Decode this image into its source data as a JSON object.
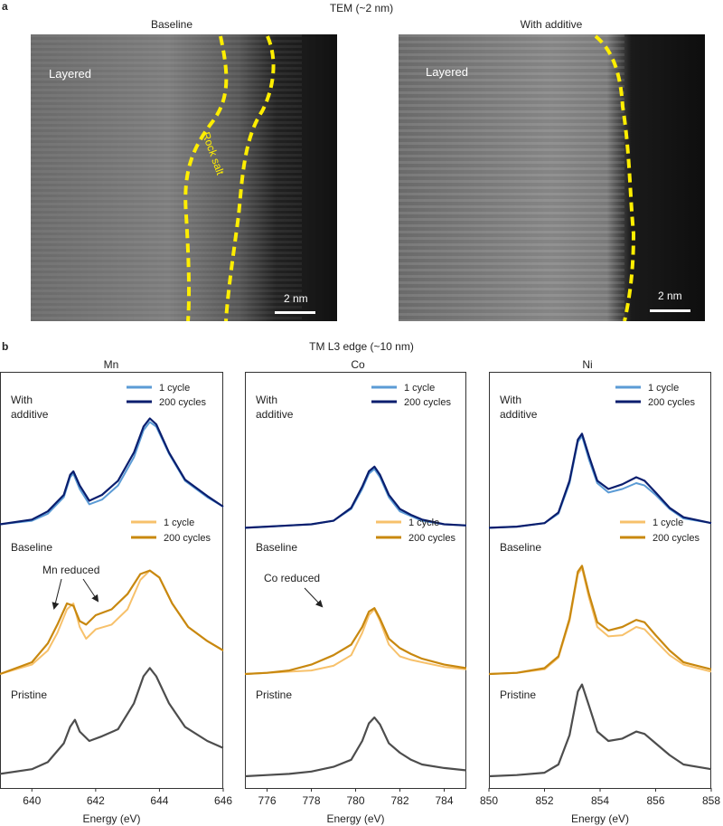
{
  "panel_a": {
    "letter": "a",
    "title": "TEM (~2 nm)",
    "images": [
      {
        "title": "Baseline",
        "region_label": "Layered",
        "interface_label": "Rock salt",
        "scale_label": "2 nm"
      },
      {
        "title": "With additive",
        "region_label": "Layered",
        "scale_label": "2 nm"
      }
    ],
    "colors": {
      "interface_line": "#ffee00",
      "scale_bar": "#ffffff"
    }
  },
  "panel_b": {
    "letter": "b",
    "title": "TM L3 edge (~10 nm)",
    "xlabel": "Energy (eV)",
    "group_labels": {
      "with_additive": "With\nadditive",
      "baseline": "Baseline",
      "pristine": "Pristine"
    },
    "legend": {
      "one_cycle": "1 cycle",
      "two_hundred_cycles": "200 cycles"
    },
    "colors": {
      "additive_1": "#5b9bd5",
      "additive_200": "#0a1e6e",
      "baseline_1": "#f7c16b",
      "baseline_200": "#c8880f",
      "pristine": "#4d4d4d"
    }
  },
  "chart_data": [
    {
      "type": "line",
      "element": "Mn",
      "title": "Mn",
      "xlabel": "Energy (eV)",
      "xlim": [
        639,
        646
      ],
      "xticks": [
        640,
        642,
        644,
        646
      ],
      "annotation": "Mn reduced",
      "series": [
        {
          "name": "1 cycle",
          "group": "With additive",
          "x": [
            639,
            640,
            640.5,
            641,
            641.2,
            641.3,
            641.5,
            641.8,
            642.2,
            642.7,
            643.2,
            643.5,
            643.7,
            643.9,
            644.3,
            644.8,
            645.5,
            646
          ],
          "y": [
            0.05,
            0.08,
            0.14,
            0.28,
            0.45,
            0.48,
            0.35,
            0.22,
            0.26,
            0.38,
            0.62,
            0.85,
            0.92,
            0.88,
            0.65,
            0.42,
            0.28,
            0.2
          ]
        },
        {
          "name": "200 cycles",
          "group": "With additive",
          "x": [
            639,
            640,
            640.5,
            641,
            641.2,
            641.3,
            641.5,
            641.8,
            642.2,
            642.7,
            643.2,
            643.5,
            643.7,
            643.9,
            644.3,
            644.8,
            645.5,
            646
          ],
          "y": [
            0.05,
            0.09,
            0.16,
            0.3,
            0.47,
            0.5,
            0.38,
            0.25,
            0.3,
            0.42,
            0.66,
            0.88,
            0.95,
            0.9,
            0.66,
            0.43,
            0.29,
            0.2
          ]
        },
        {
          "name": "1 cycle",
          "group": "Baseline",
          "x": [
            639,
            640,
            640.5,
            640.8,
            641.1,
            641.3,
            641.5,
            641.7,
            642,
            642.5,
            643,
            643.4,
            643.7,
            644,
            644.4,
            644.9,
            645.5,
            646
          ],
          "y": [
            0.0,
            0.08,
            0.2,
            0.35,
            0.55,
            0.6,
            0.4,
            0.3,
            0.38,
            0.42,
            0.55,
            0.8,
            0.88,
            0.82,
            0.6,
            0.4,
            0.28,
            0.2
          ]
        },
        {
          "name": "200 cycles",
          "group": "Baseline",
          "x": [
            639,
            640,
            640.5,
            640.8,
            641.1,
            641.3,
            641.5,
            641.7,
            642,
            642.5,
            643,
            643.4,
            643.7,
            644,
            644.4,
            644.9,
            645.5,
            646
          ],
          "y": [
            0.0,
            0.1,
            0.26,
            0.42,
            0.6,
            0.58,
            0.45,
            0.42,
            0.5,
            0.55,
            0.68,
            0.85,
            0.88,
            0.82,
            0.6,
            0.4,
            0.28,
            0.2
          ]
        },
        {
          "name": "Pristine",
          "group": "Pristine",
          "x": [
            639,
            640,
            640.5,
            641,
            641.2,
            641.35,
            641.5,
            641.8,
            642.2,
            642.7,
            643.2,
            643.5,
            643.7,
            643.9,
            644.3,
            644.8,
            645.5,
            646
          ],
          "y": [
            0.02,
            0.06,
            0.12,
            0.28,
            0.42,
            0.48,
            0.38,
            0.3,
            0.34,
            0.4,
            0.62,
            0.85,
            0.92,
            0.85,
            0.62,
            0.42,
            0.3,
            0.24
          ]
        }
      ]
    },
    {
      "type": "line",
      "element": "Co",
      "title": "Co",
      "xlabel": "Energy (eV)",
      "xlim": [
        775,
        785
      ],
      "xticks": [
        776,
        778,
        780,
        782,
        784
      ],
      "annotation": "Co reduced",
      "series": [
        {
          "name": "1 cycle",
          "group": "With additive",
          "x": [
            775,
            776,
            777,
            778,
            779,
            779.8,
            780.3,
            780.6,
            780.85,
            781.1,
            781.5,
            782,
            782.5,
            783,
            784,
            785
          ],
          "y": [
            0.02,
            0.03,
            0.04,
            0.05,
            0.08,
            0.18,
            0.35,
            0.48,
            0.52,
            0.45,
            0.28,
            0.16,
            0.12,
            0.08,
            0.05,
            0.04
          ]
        },
        {
          "name": "200 cycles",
          "group": "With additive",
          "x": [
            775,
            776,
            777,
            778,
            779,
            779.8,
            780.3,
            780.6,
            780.85,
            781.1,
            781.5,
            782,
            782.5,
            783,
            784,
            785
          ],
          "y": [
            0.02,
            0.03,
            0.04,
            0.05,
            0.08,
            0.19,
            0.37,
            0.5,
            0.54,
            0.47,
            0.3,
            0.18,
            0.13,
            0.09,
            0.05,
            0.04
          ]
        },
        {
          "name": "1 cycle",
          "group": "Baseline",
          "x": [
            775,
            776,
            777,
            778,
            779,
            779.8,
            780.3,
            780.6,
            780.85,
            781.1,
            781.5,
            782,
            782.5,
            783,
            784,
            785
          ],
          "y": [
            0.0,
            0.01,
            0.02,
            0.03,
            0.07,
            0.16,
            0.35,
            0.5,
            0.55,
            0.45,
            0.25,
            0.15,
            0.12,
            0.1,
            0.06,
            0.04
          ]
        },
        {
          "name": "200 cycles",
          "group": "Baseline",
          "x": [
            775,
            776,
            777,
            778,
            779,
            779.8,
            780.3,
            780.6,
            780.85,
            781.1,
            781.5,
            782,
            782.5,
            783,
            784,
            785
          ],
          "y": [
            0.0,
            0.01,
            0.03,
            0.08,
            0.16,
            0.25,
            0.4,
            0.53,
            0.56,
            0.47,
            0.3,
            0.22,
            0.17,
            0.13,
            0.08,
            0.05
          ]
        },
        {
          "name": "Pristine",
          "group": "Pristine",
          "x": [
            775,
            776,
            777,
            778,
            779,
            779.8,
            780.3,
            780.6,
            780.85,
            781.1,
            781.5,
            782,
            782.5,
            783,
            784,
            785
          ],
          "y": [
            0.0,
            0.01,
            0.02,
            0.04,
            0.08,
            0.14,
            0.3,
            0.45,
            0.5,
            0.44,
            0.28,
            0.2,
            0.14,
            0.1,
            0.07,
            0.05
          ]
        }
      ]
    },
    {
      "type": "line",
      "element": "Ni",
      "title": "Ni",
      "xlabel": "Energy (eV)",
      "xlim": [
        850,
        858
      ],
      "xticks": [
        850,
        852,
        854,
        856,
        858
      ],
      "series": [
        {
          "name": "1 cycle",
          "group": "With additive",
          "x": [
            850,
            851,
            852,
            852.5,
            852.9,
            853.2,
            853.35,
            853.6,
            853.9,
            854.3,
            854.8,
            855.3,
            855.6,
            856,
            856.5,
            857,
            858
          ],
          "y": [
            0.02,
            0.03,
            0.06,
            0.14,
            0.4,
            0.75,
            0.8,
            0.6,
            0.4,
            0.32,
            0.35,
            0.4,
            0.38,
            0.3,
            0.18,
            0.1,
            0.06
          ]
        },
        {
          "name": "200 cycles",
          "group": "With additive",
          "x": [
            850,
            851,
            852,
            852.5,
            852.9,
            853.2,
            853.35,
            853.6,
            853.9,
            854.3,
            854.8,
            855.3,
            855.6,
            856,
            856.5,
            857,
            858
          ],
          "y": [
            0.02,
            0.03,
            0.06,
            0.15,
            0.42,
            0.77,
            0.82,
            0.63,
            0.42,
            0.35,
            0.39,
            0.45,
            0.42,
            0.32,
            0.19,
            0.11,
            0.06
          ]
        },
        {
          "name": "1 cycle",
          "group": "Baseline",
          "x": [
            850,
            851,
            852,
            852.5,
            852.9,
            853.2,
            853.35,
            853.6,
            853.9,
            854.3,
            854.8,
            855.3,
            855.6,
            856,
            856.5,
            857,
            858
          ],
          "y": [
            0.0,
            0.01,
            0.04,
            0.14,
            0.45,
            0.85,
            0.9,
            0.65,
            0.4,
            0.32,
            0.33,
            0.4,
            0.38,
            0.28,
            0.16,
            0.08,
            0.02
          ]
        },
        {
          "name": "200 cycles",
          "group": "Baseline",
          "x": [
            850,
            851,
            852,
            852.5,
            852.9,
            853.2,
            853.35,
            853.6,
            853.9,
            854.3,
            854.8,
            855.3,
            855.6,
            856,
            856.5,
            857,
            858
          ],
          "y": [
            0.0,
            0.01,
            0.05,
            0.15,
            0.47,
            0.87,
            0.92,
            0.68,
            0.44,
            0.37,
            0.4,
            0.46,
            0.44,
            0.33,
            0.2,
            0.1,
            0.04
          ]
        },
        {
          "name": "Pristine",
          "group": "Pristine",
          "x": [
            850,
            851,
            852,
            852.5,
            852.9,
            853.2,
            853.35,
            853.6,
            853.9,
            854.3,
            854.8,
            855.3,
            855.6,
            856,
            856.5,
            857,
            858
          ],
          "y": [
            0.0,
            0.01,
            0.03,
            0.1,
            0.35,
            0.72,
            0.78,
            0.6,
            0.38,
            0.3,
            0.32,
            0.38,
            0.36,
            0.28,
            0.18,
            0.1,
            0.06
          ]
        }
      ]
    }
  ]
}
